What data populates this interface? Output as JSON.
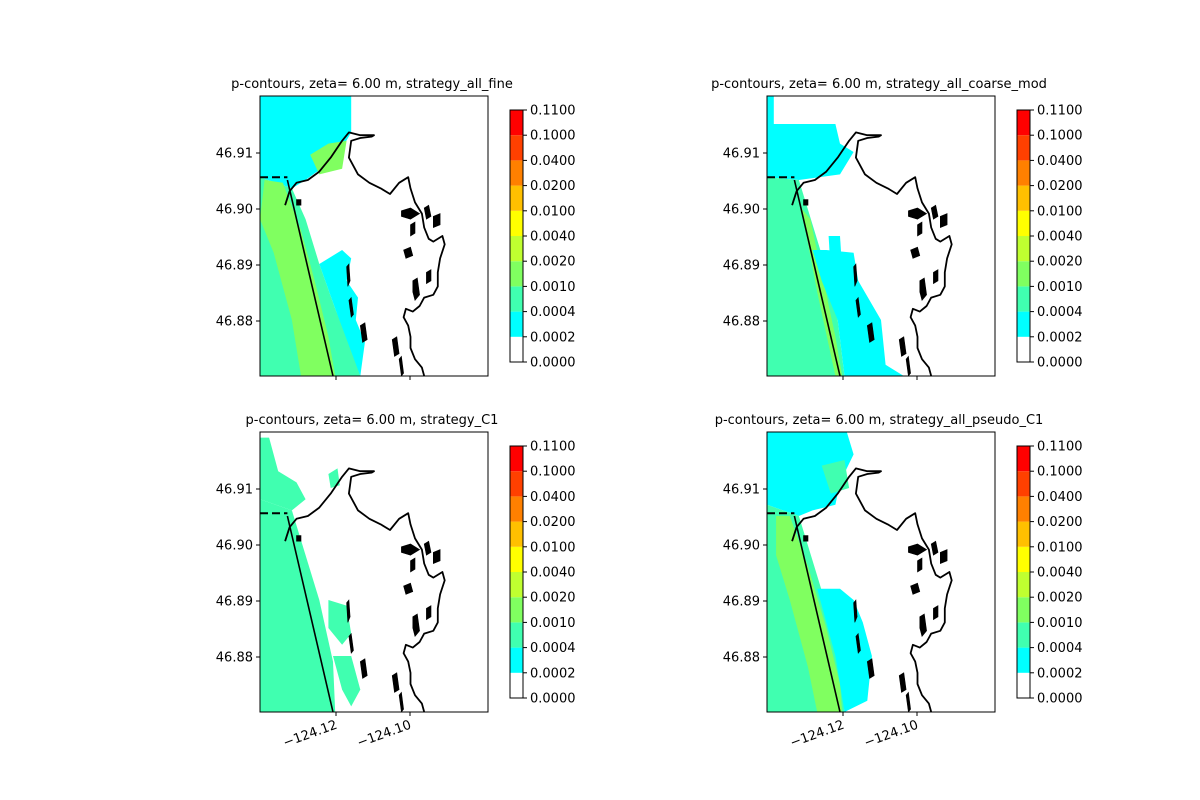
{
  "figure": {
    "background": "#ffffff"
  },
  "chart_data": {
    "type": "heatmap",
    "colorbar": {
      "ticks": [
        "0.0000",
        "0.0002",
        "0.0004",
        "0.0010",
        "0.0020",
        "0.0040",
        "0.0100",
        "0.0200",
        "0.0400",
        "0.1000",
        "0.1100"
      ],
      "level_colors": [
        "#ffffff",
        "#00ffff",
        "#40ffb0",
        "#80ff60",
        "#c0ff30",
        "#ffff00",
        "#ffc000",
        "#ff8000",
        "#ff4000",
        "#ff0000"
      ]
    },
    "y_ticks": [
      "46.91",
      "46.90",
      "46.89",
      "46.88"
    ],
    "x_ticks": [
      "−124.12",
      "−124.10"
    ],
    "coast_color": "#000000",
    "panels": [
      {
        "title": "p-contours, zeta= 6.00 m, strategy_all_fine",
        "show_xticks": false,
        "regions": [
          {
            "color": "#00ffff",
            "points": [
              [
                0.0,
                0.0
              ],
              [
                0.4,
                0.0
              ],
              [
                0.4,
                0.13
              ],
              [
                0.35,
                0.2
              ],
              [
                0.33,
                0.26
              ],
              [
                0.25,
                0.27
              ],
              [
                0.2,
                0.3
              ],
              [
                0.14,
                0.33
              ],
              [
                0.0,
                0.29
              ]
            ]
          },
          {
            "color": "#40ffb0",
            "points": [
              [
                0.0,
                0.29
              ],
              [
                0.14,
                0.33
              ],
              [
                0.2,
                0.44
              ],
              [
                0.26,
                0.6
              ],
              [
                0.33,
                0.76
              ],
              [
                0.4,
                0.9
              ],
              [
                0.44,
                1.0
              ],
              [
                0.0,
                1.0
              ]
            ]
          },
          {
            "color": "#80ff60",
            "points": [
              [
                0.02,
                0.3
              ],
              [
                0.1,
                0.31
              ],
              [
                0.18,
                0.48
              ],
              [
                0.24,
                0.66
              ],
              [
                0.3,
                0.86
              ],
              [
                0.33,
                1.0
              ],
              [
                0.18,
                1.0
              ],
              [
                0.14,
                0.8
              ],
              [
                0.06,
                0.56
              ],
              [
                0.0,
                0.44
              ]
            ]
          },
          {
            "color": "#00ffff",
            "points": [
              [
                0.26,
                0.6
              ],
              [
                0.36,
                0.55
              ],
              [
                0.4,
                0.58
              ],
              [
                0.38,
                0.66
              ],
              [
                0.43,
                0.72
              ],
              [
                0.42,
                0.8
              ],
              [
                0.46,
                0.88
              ],
              [
                0.44,
                1.0
              ],
              [
                0.33,
                0.76
              ]
            ]
          },
          {
            "color": "#80ff60",
            "points": [
              [
                0.22,
                0.21
              ],
              [
                0.3,
                0.17
              ],
              [
                0.38,
                0.16
              ],
              [
                0.36,
                0.26
              ],
              [
                0.26,
                0.28
              ]
            ]
          }
        ]
      },
      {
        "title": "p-contours, zeta= 6.00 m, strategy_all_coarse_mod",
        "show_xticks": false,
        "regions": [
          {
            "color": "#00ffff",
            "points": [
              [
                0.0,
                0.0
              ],
              [
                0.03,
                0.0
              ],
              [
                0.03,
                0.1
              ],
              [
                0.3,
                0.1
              ],
              [
                0.32,
                0.17
              ],
              [
                0.38,
                0.2
              ],
              [
                0.32,
                0.28
              ],
              [
                0.14,
                0.3
              ],
              [
                0.0,
                0.29
              ]
            ]
          },
          {
            "color": "#40ffb0",
            "points": [
              [
                0.0,
                0.29
              ],
              [
                0.14,
                0.3
              ],
              [
                0.2,
                0.46
              ],
              [
                0.26,
                0.62
              ],
              [
                0.31,
                0.8
              ],
              [
                0.34,
                1.0
              ],
              [
                0.0,
                1.0
              ]
            ]
          },
          {
            "color": "#80ff60",
            "points": [
              [
                0.15,
                0.4
              ],
              [
                0.19,
                0.44
              ],
              [
                0.3,
                0.86
              ],
              [
                0.33,
                1.0
              ],
              [
                0.3,
                1.0
              ],
              [
                0.22,
                0.7
              ]
            ]
          },
          {
            "color": "#00ffff",
            "points": [
              [
                0.2,
                0.55
              ],
              [
                0.26,
                0.55
              ],
              [
                0.38,
                0.56
              ],
              [
                0.4,
                0.66
              ],
              [
                0.5,
                0.8
              ],
              [
                0.52,
                0.96
              ],
              [
                0.6,
                1.0
              ],
              [
                0.34,
                1.0
              ],
              [
                0.31,
                0.8
              ],
              [
                0.24,
                0.66
              ]
            ]
          },
          {
            "color": "#00ffff",
            "points": [
              [
                0.27,
                0.5
              ],
              [
                0.32,
                0.5
              ],
              [
                0.33,
                0.62
              ],
              [
                0.28,
                0.63
              ]
            ]
          }
        ]
      },
      {
        "title": "p-contours, zeta= 6.00 m, strategy_C1",
        "show_xticks": true,
        "regions": [
          {
            "color": "#40ffb0",
            "points": [
              [
                0.0,
                0.02
              ],
              [
                0.04,
                0.02
              ],
              [
                0.08,
                0.14
              ],
              [
                0.16,
                0.18
              ],
              [
                0.2,
                0.24
              ],
              [
                0.14,
                0.28
              ],
              [
                0.0,
                0.24
              ]
            ]
          },
          {
            "color": "#40ffb0",
            "points": [
              [
                0.0,
                0.24
              ],
              [
                0.14,
                0.28
              ],
              [
                0.2,
                0.44
              ],
              [
                0.26,
                0.6
              ],
              [
                0.32,
                0.82
              ],
              [
                0.33,
                1.0
              ],
              [
                0.0,
                1.0
              ]
            ]
          },
          {
            "color": "#40ffb0",
            "points": [
              [
                0.3,
                0.6
              ],
              [
                0.38,
                0.62
              ],
              [
                0.4,
                0.72
              ],
              [
                0.36,
                0.76
              ],
              [
                0.3,
                0.7
              ]
            ]
          },
          {
            "color": "#40ffb0",
            "points": [
              [
                0.32,
                0.8
              ],
              [
                0.4,
                0.8
              ],
              [
                0.44,
                0.92
              ],
              [
                0.4,
                0.98
              ],
              [
                0.36,
                0.92
              ]
            ]
          },
          {
            "color": "#40ffb0",
            "points": [
              [
                0.3,
                0.15
              ],
              [
                0.34,
                0.13
              ],
              [
                0.35,
                0.19
              ],
              [
                0.31,
                0.2
              ]
            ]
          }
        ]
      },
      {
        "title": "p-contours, zeta= 6.00 m, strategy_all_pseudo_C1",
        "show_xticks": true,
        "regions": [
          {
            "color": "#00ffff",
            "points": [
              [
                0.0,
                0.0
              ],
              [
                0.35,
                0.0
              ],
              [
                0.38,
                0.08
              ],
              [
                0.32,
                0.18
              ],
              [
                0.3,
                0.26
              ],
              [
                0.2,
                0.28
              ],
              [
                0.14,
                0.3
              ],
              [
                0.0,
                0.26
              ]
            ]
          },
          {
            "color": "#40ffb0",
            "points": [
              [
                0.0,
                0.26
              ],
              [
                0.14,
                0.3
              ],
              [
                0.2,
                0.46
              ],
              [
                0.26,
                0.62
              ],
              [
                0.32,
                0.82
              ],
              [
                0.34,
                1.0
              ],
              [
                0.0,
                1.0
              ]
            ]
          },
          {
            "color": "#80ff60",
            "points": [
              [
                0.04,
                0.3
              ],
              [
                0.1,
                0.3
              ],
              [
                0.18,
                0.48
              ],
              [
                0.26,
                0.7
              ],
              [
                0.32,
                0.9
              ],
              [
                0.33,
                1.0
              ],
              [
                0.22,
                1.0
              ],
              [
                0.18,
                0.84
              ],
              [
                0.1,
                0.6
              ],
              [
                0.04,
                0.44
              ]
            ]
          },
          {
            "color": "#00ffff",
            "points": [
              [
                0.22,
                0.56
              ],
              [
                0.32,
                0.56
              ],
              [
                0.38,
                0.6
              ],
              [
                0.42,
                0.68
              ],
              [
                0.46,
                0.8
              ],
              [
                0.44,
                0.96
              ],
              [
                0.34,
                1.0
              ],
              [
                0.3,
                0.8
              ]
            ]
          },
          {
            "color": "#40ffb0",
            "points": [
              [
                0.24,
                0.12
              ],
              [
                0.34,
                0.1
              ],
              [
                0.36,
                0.2
              ],
              [
                0.28,
                0.22
              ]
            ]
          }
        ]
      }
    ]
  }
}
